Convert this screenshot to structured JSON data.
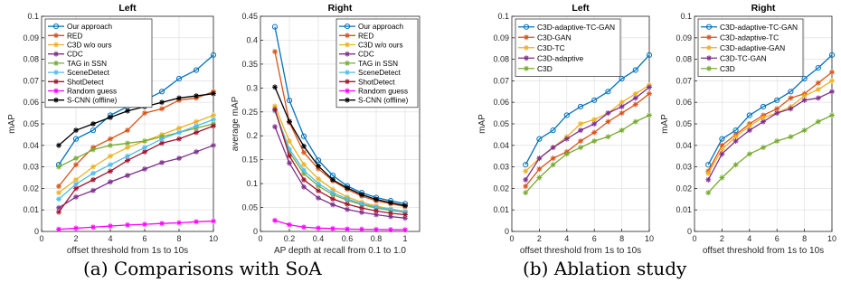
{
  "captions": {
    "a": "(a) Comparisons with SoA",
    "b": "(b) Ablation study"
  },
  "chart_data": [
    {
      "type": "line",
      "title": "Left",
      "xlabel": "offset threshold from 1s to 10s",
      "ylabel": "mAP",
      "xlim": [
        0,
        10
      ],
      "ylim": [
        0,
        0.1
      ],
      "xticks": [
        0,
        2,
        4,
        6,
        8,
        10
      ],
      "yticks": [
        0,
        0.01,
        0.02,
        0.03,
        0.04,
        0.05,
        0.06,
        0.07,
        0.08,
        0.09,
        0.1
      ],
      "ytick_labels": [
        "0",
        "0.01",
        "0.02",
        "0.03",
        "0.04",
        "0.05",
        "0.06",
        "0.07",
        "0.08",
        "0.09",
        "0.1"
      ],
      "grid": true,
      "legend": "top-left",
      "x": [
        1,
        2,
        3,
        4,
        5,
        6,
        7,
        8,
        9,
        10
      ],
      "series": [
        {
          "name": "Our approach",
          "color": "#0072bd",
          "marker": "circle",
          "values": [
            0.031,
            0.043,
            0.047,
            0.054,
            0.058,
            0.061,
            0.065,
            0.071,
            0.075,
            0.082
          ]
        },
        {
          "name": "RED",
          "color": "#d95319",
          "marker": "star",
          "values": [
            0.021,
            0.031,
            0.039,
            0.043,
            0.047,
            0.055,
            0.057,
            0.061,
            0.062,
            0.065
          ]
        },
        {
          "name": "C3D w/o ours",
          "color": "#edb120",
          "marker": "star",
          "values": [
            0.018,
            0.024,
            0.03,
            0.035,
            0.039,
            0.042,
            0.045,
            0.048,
            0.051,
            0.054
          ]
        },
        {
          "name": "CDC",
          "color": "#7e2f8e",
          "marker": "star",
          "values": [
            0.011,
            0.016,
            0.019,
            0.023,
            0.026,
            0.029,
            0.032,
            0.034,
            0.037,
            0.04
          ]
        },
        {
          "name": "TAG in SSN",
          "color": "#77ac30",
          "marker": "star",
          "values": [
            0.03,
            0.034,
            0.038,
            0.04,
            0.041,
            0.042,
            0.044,
            0.046,
            0.048,
            0.05
          ]
        },
        {
          "name": "SceneDetect",
          "color": "#4dbeee",
          "marker": "star",
          "values": [
            0.015,
            0.022,
            0.027,
            0.031,
            0.035,
            0.039,
            0.043,
            0.046,
            0.049,
            0.052
          ]
        },
        {
          "name": "ShotDetect",
          "color": "#a2142f",
          "marker": "star",
          "values": [
            0.009,
            0.02,
            0.024,
            0.028,
            0.033,
            0.037,
            0.041,
            0.043,
            0.046,
            0.049
          ]
        },
        {
          "name": "Random guess",
          "color": "#ff00ff",
          "marker": "star",
          "values": [
            0.001,
            0.0015,
            0.002,
            0.0025,
            0.003,
            0.0033,
            0.0037,
            0.004,
            0.0045,
            0.0048
          ]
        },
        {
          "name": "S-CNN (offline)",
          "color": "#000000",
          "marker": "star",
          "values": [
            0.04,
            0.047,
            0.05,
            0.053,
            0.056,
            0.058,
            0.06,
            0.062,
            0.063,
            0.064
          ]
        }
      ]
    },
    {
      "type": "line",
      "title": "Right",
      "xlabel": "AP depth at recall from 0.1 to 1.0",
      "ylabel": "average mAP",
      "xlim": [
        0,
        1.1
      ],
      "ylim": [
        0,
        0.45
      ],
      "xticks": [
        0,
        0.2,
        0.4,
        0.6,
        0.8,
        1
      ],
      "xtick_labels": [
        "0",
        "0.2",
        "0.4",
        "0.6",
        "0.8",
        "1"
      ],
      "yticks": [
        0,
        0.05,
        0.1,
        0.15,
        0.2,
        0.25,
        0.3,
        0.35,
        0.4,
        0.45
      ],
      "ytick_labels": [
        "0",
        "0.05",
        "0.1",
        "0.15",
        "0.2",
        "0.25",
        "0.3",
        "0.35",
        "0.4",
        "0.45"
      ],
      "grid": true,
      "legend": "top-right",
      "x": [
        0.1,
        0.2,
        0.3,
        0.4,
        0.5,
        0.6,
        0.7,
        0.8,
        0.9,
        1.0
      ],
      "series": [
        {
          "name": "Our approach",
          "color": "#0072bd",
          "marker": "circle",
          "values": [
            0.428,
            0.274,
            0.199,
            0.149,
            0.117,
            0.095,
            0.081,
            0.071,
            0.064,
            0.058
          ]
        },
        {
          "name": "RED",
          "color": "#d95319",
          "marker": "star",
          "values": [
            0.376,
            0.228,
            0.165,
            0.131,
            0.106,
            0.088,
            0.074,
            0.064,
            0.058,
            0.052
          ]
        },
        {
          "name": "C3D w/o ours",
          "color": "#edb120",
          "marker": "star",
          "values": [
            0.262,
            0.189,
            0.14,
            0.11,
            0.088,
            0.072,
            0.061,
            0.053,
            0.047,
            0.042
          ]
        },
        {
          "name": "CDC",
          "color": "#7e2f8e",
          "marker": "star",
          "values": [
            0.219,
            0.143,
            0.093,
            0.07,
            0.056,
            0.046,
            0.04,
            0.035,
            0.031,
            0.028
          ]
        },
        {
          "name": "TAG in SSN",
          "color": "#77ac30",
          "marker": "star",
          "values": [
            0.255,
            0.166,
            0.121,
            0.095,
            0.077,
            0.065,
            0.056,
            0.049,
            0.044,
            0.04
          ]
        },
        {
          "name": "SceneDetect",
          "color": "#4dbeee",
          "marker": "star",
          "values": [
            0.252,
            0.172,
            0.128,
            0.1,
            0.081,
            0.068,
            0.058,
            0.051,
            0.046,
            0.041
          ]
        },
        {
          "name": "ShotDetect",
          "color": "#a2142f",
          "marker": "star",
          "values": [
            0.255,
            0.158,
            0.108,
            0.085,
            0.068,
            0.057,
            0.049,
            0.043,
            0.038,
            0.035
          ]
        },
        {
          "name": "Random guess",
          "color": "#ff00ff",
          "marker": "star",
          "values": [
            0.023,
            0.014,
            0.009,
            0.007,
            0.006,
            0.005,
            0.0045,
            0.004,
            0.0037,
            0.0035
          ]
        },
        {
          "name": "S-CNN (offline)",
          "color": "#000000",
          "marker": "star",
          "values": [
            0.302,
            0.23,
            0.178,
            0.137,
            0.108,
            0.091,
            0.077,
            0.067,
            0.06,
            0.054
          ]
        }
      ]
    },
    {
      "type": "line",
      "title": "Left",
      "xlabel": "offset threshold from 1s to 10s",
      "ylabel": "mAP",
      "xlim": [
        0,
        10
      ],
      "ylim": [
        0,
        0.1
      ],
      "xticks": [
        0,
        2,
        4,
        6,
        8,
        10
      ],
      "yticks": [
        0,
        0.01,
        0.02,
        0.03,
        0.04,
        0.05,
        0.06,
        0.07,
        0.08,
        0.09,
        0.1
      ],
      "ytick_labels": [
        "0",
        "0.01",
        "0.02",
        "0.03",
        "0.04",
        "0.05",
        "0.06",
        "0.07",
        "0.08",
        "0.09",
        "0.1"
      ],
      "grid": true,
      "legend": "top-left",
      "x": [
        1,
        2,
        3,
        4,
        5,
        6,
        7,
        8,
        9,
        10
      ],
      "series": [
        {
          "name": "C3D-adaptive-TC-GAN",
          "color": "#0072bd",
          "marker": "circle",
          "values": [
            0.031,
            0.043,
            0.047,
            0.054,
            0.058,
            0.061,
            0.065,
            0.071,
            0.075,
            0.082
          ]
        },
        {
          "name": "C3D-GAN",
          "color": "#d95319",
          "marker": "star",
          "values": [
            0.021,
            0.029,
            0.034,
            0.037,
            0.042,
            0.046,
            0.051,
            0.055,
            0.059,
            0.064
          ]
        },
        {
          "name": "C3D-TC",
          "color": "#edb120",
          "marker": "star",
          "values": [
            0.028,
            0.034,
            0.039,
            0.044,
            0.05,
            0.052,
            0.055,
            0.06,
            0.064,
            0.068
          ]
        },
        {
          "name": "C3D-adaptive",
          "color": "#7e2f8e",
          "marker": "star",
          "values": [
            0.024,
            0.034,
            0.039,
            0.043,
            0.047,
            0.05,
            0.055,
            0.058,
            0.062,
            0.067
          ]
        },
        {
          "name": "C3D",
          "color": "#77ac30",
          "marker": "star",
          "values": [
            0.018,
            0.025,
            0.031,
            0.036,
            0.039,
            0.042,
            0.044,
            0.047,
            0.051,
            0.054
          ]
        }
      ]
    },
    {
      "type": "line",
      "title": "Right",
      "xlabel": "offset threshold from 1s to 10s",
      "ylabel": "mAP",
      "xlim": [
        0,
        10
      ],
      "ylim": [
        0,
        0.1
      ],
      "xticks": [
        0,
        2,
        4,
        6,
        8,
        10
      ],
      "yticks": [
        0,
        0.01,
        0.02,
        0.03,
        0.04,
        0.05,
        0.06,
        0.07,
        0.08,
        0.09,
        0.1
      ],
      "ytick_labels": [
        "0",
        "0.01",
        "0.02",
        "0.03",
        "0.04",
        "0.05",
        "0.06",
        "0.07",
        "0.08",
        "0.09",
        "0.1"
      ],
      "grid": true,
      "legend": "top-left",
      "x": [
        1,
        2,
        3,
        4,
        5,
        6,
        7,
        8,
        9,
        10
      ],
      "series": [
        {
          "name": "C3D-adaptive-TC-GAN",
          "color": "#0072bd",
          "marker": "circle",
          "values": [
            0.031,
            0.043,
            0.047,
            0.054,
            0.058,
            0.061,
            0.065,
            0.071,
            0.076,
            0.082
          ]
        },
        {
          "name": "C3D-adaptive-TC",
          "color": "#d95319",
          "marker": "star",
          "values": [
            0.028,
            0.04,
            0.045,
            0.05,
            0.054,
            0.057,
            0.062,
            0.064,
            0.069,
            0.074
          ]
        },
        {
          "name": "C3D-adaptive-GAN",
          "color": "#edb120",
          "marker": "star",
          "values": [
            0.027,
            0.038,
            0.044,
            0.049,
            0.053,
            0.055,
            0.058,
            0.063,
            0.066,
            0.07
          ]
        },
        {
          "name": "C3D-TC-GAN",
          "color": "#7e2f8e",
          "marker": "star",
          "values": [
            0.024,
            0.036,
            0.042,
            0.047,
            0.051,
            0.055,
            0.057,
            0.061,
            0.062,
            0.065
          ]
        },
        {
          "name": "C3D",
          "color": "#77ac30",
          "marker": "star",
          "values": [
            0.018,
            0.025,
            0.031,
            0.036,
            0.039,
            0.042,
            0.044,
            0.047,
            0.051,
            0.054
          ]
        }
      ]
    }
  ]
}
